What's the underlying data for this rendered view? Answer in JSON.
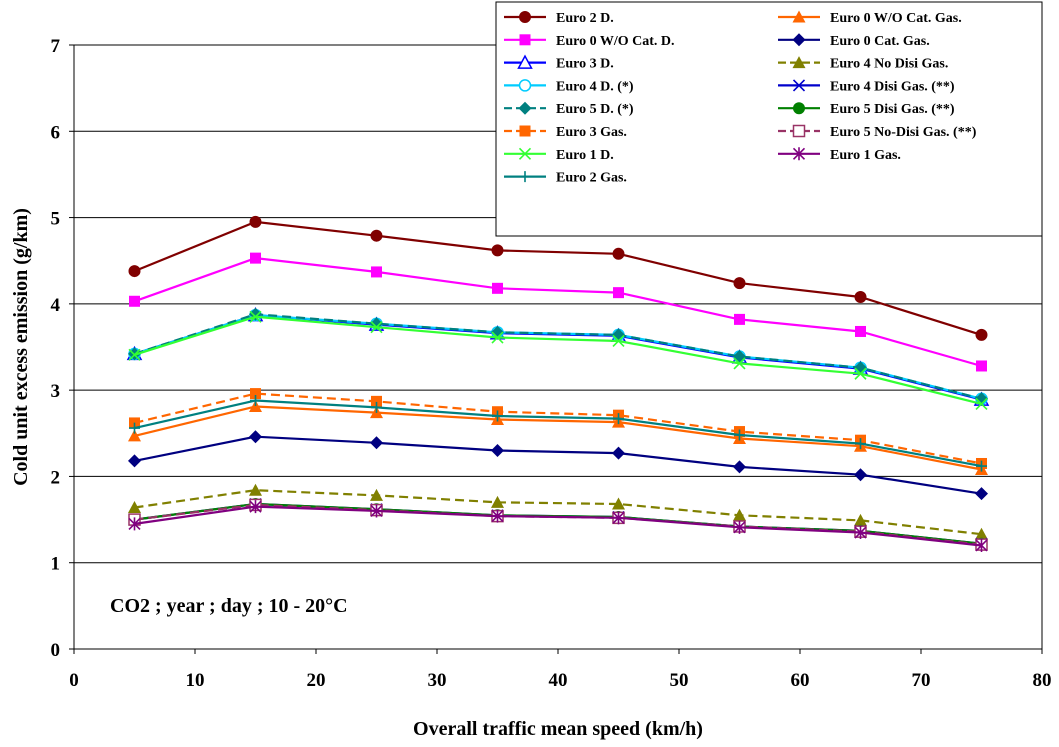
{
  "chart_data": {
    "type": "line",
    "xlabel": "Overall traffic mean speed (km/h)",
    "ylabel": "Cold unit excess emission (g/km)",
    "annotation": "CO2 ; year ; day ; 10 - 20°C",
    "xlim": [
      0,
      80
    ],
    "ylim": [
      0,
      7
    ],
    "xticks": [
      0,
      10,
      20,
      30,
      40,
      50,
      60,
      70,
      80
    ],
    "yticks": [
      0,
      1,
      2,
      3,
      4,
      5,
      6,
      7
    ],
    "grid": "horizontal",
    "legend_position": "top-right",
    "x": [
      5,
      15,
      25,
      35,
      45,
      55,
      65,
      75
    ],
    "series": [
      {
        "name": "Euro 2 D.",
        "color": "#800000",
        "marker": "circle",
        "dash": false,
        "values": [
          4.38,
          4.95,
          4.79,
          4.62,
          4.58,
          4.24,
          4.08,
          3.64
        ]
      },
      {
        "name": "Euro 0 W/O Cat. Gas.",
        "color": "#FF6600",
        "marker": "triangle",
        "dash": false,
        "values": [
          2.47,
          2.81,
          2.74,
          2.66,
          2.63,
          2.44,
          2.35,
          2.08
        ]
      },
      {
        "name": "Euro 0 W/O Cat. D.",
        "color": "#FF00FF",
        "marker": "square",
        "dash": false,
        "values": [
          4.03,
          4.53,
          4.37,
          4.18,
          4.13,
          3.82,
          3.68,
          3.28
        ]
      },
      {
        "name": "Euro 0 Cat. Gas.",
        "color": "#000080",
        "marker": "diamond",
        "dash": false,
        "values": [
          2.18,
          2.46,
          2.39,
          2.3,
          2.27,
          2.11,
          2.02,
          1.8
        ]
      },
      {
        "name": "Euro 3 D.",
        "color": "#0000FF",
        "marker": "triangle-open",
        "dash": false,
        "values": [
          3.42,
          3.87,
          3.76,
          3.66,
          3.63,
          3.38,
          3.25,
          2.89
        ]
      },
      {
        "name": "Euro 4 No Disi Gas.",
        "color": "#808000",
        "marker": "triangle",
        "dash": true,
        "values": [
          1.64,
          1.84,
          1.78,
          1.7,
          1.68,
          1.55,
          1.49,
          1.33
        ]
      },
      {
        "name": "Euro 4 D. (*)",
        "color": "#00CCFF",
        "marker": "circle-open",
        "dash": false,
        "values": [
          3.42,
          3.87,
          3.77,
          3.67,
          3.64,
          3.39,
          3.26,
          2.9
        ]
      },
      {
        "name": "Euro 4 Disi Gas. (**)",
        "color": "#0000CC",
        "marker": "x",
        "dash": false,
        "values": [
          1.5,
          1.68,
          1.62,
          1.55,
          1.53,
          1.42,
          1.37,
          1.22
        ]
      },
      {
        "name": "Euro 5 D. (*)",
        "color": "#008080",
        "marker": "diamond",
        "dash": true,
        "values": [
          3.42,
          3.88,
          3.77,
          3.67,
          3.64,
          3.39,
          3.26,
          2.9
        ]
      },
      {
        "name": "Euro 5 Disi Gas. (**)",
        "color": "#008000",
        "marker": "circle",
        "dash": false,
        "values": [
          1.5,
          1.68,
          1.62,
          1.55,
          1.53,
          1.42,
          1.37,
          1.22
        ]
      },
      {
        "name": "Euro 3 Gas.",
        "color": "#FF6600",
        "marker": "square",
        "dash": true,
        "values": [
          2.62,
          2.96,
          2.87,
          2.75,
          2.71,
          2.52,
          2.42,
          2.15
        ]
      },
      {
        "name": "Euro 5 No-Disi Gas. (**)",
        "color": "#993366",
        "marker": "square-open",
        "dash": true,
        "values": [
          1.5,
          1.67,
          1.61,
          1.54,
          1.52,
          1.42,
          1.36,
          1.21
        ]
      },
      {
        "name": "Euro 1 D.",
        "color": "#33FF33",
        "marker": "x",
        "dash": false,
        "values": [
          3.41,
          3.85,
          3.73,
          3.61,
          3.57,
          3.31,
          3.19,
          2.84
        ]
      },
      {
        "name": "Euro 1 Gas.",
        "color": "#800080",
        "marker": "star",
        "dash": false,
        "values": [
          1.45,
          1.65,
          1.6,
          1.54,
          1.52,
          1.41,
          1.35,
          1.2
        ]
      },
      {
        "name": "Euro 2 Gas.",
        "color": "#008080",
        "marker": "plus",
        "dash": false,
        "values": [
          2.56,
          2.88,
          2.8,
          2.7,
          2.67,
          2.48,
          2.38,
          2.12
        ]
      }
    ]
  }
}
